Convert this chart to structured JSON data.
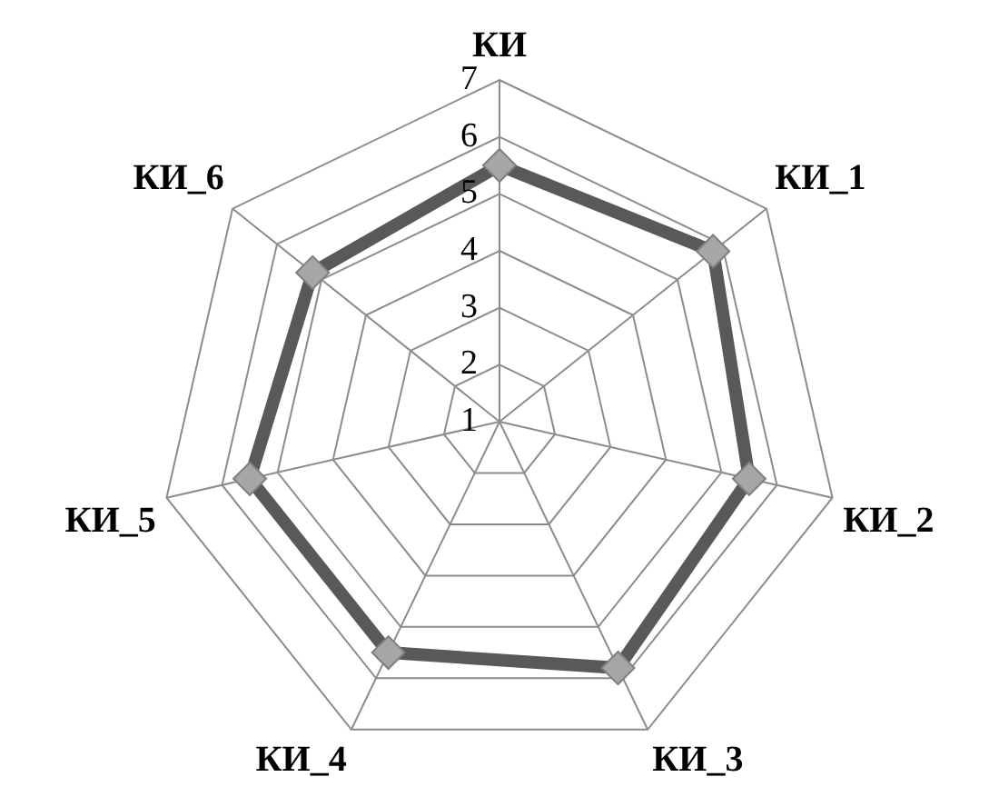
{
  "chart_data": {
    "type": "radar",
    "categories": [
      "КИ",
      "КИ_1",
      "КИ_2",
      "КИ_3",
      "КИ_4",
      "КИ_5",
      "КИ_6"
    ],
    "series": [
      {
        "color": "#595959",
        "values": [
          5.5,
          5.8,
          5.5,
          5.8,
          5.5,
          5.5,
          5.2
        ]
      }
    ],
    "ylim": [
      1,
      7
    ],
    "yticks": [
      1,
      2,
      3,
      4,
      5,
      6,
      7
    ],
    "grid": true,
    "marker": "diamond",
    "line_style": "solid"
  }
}
